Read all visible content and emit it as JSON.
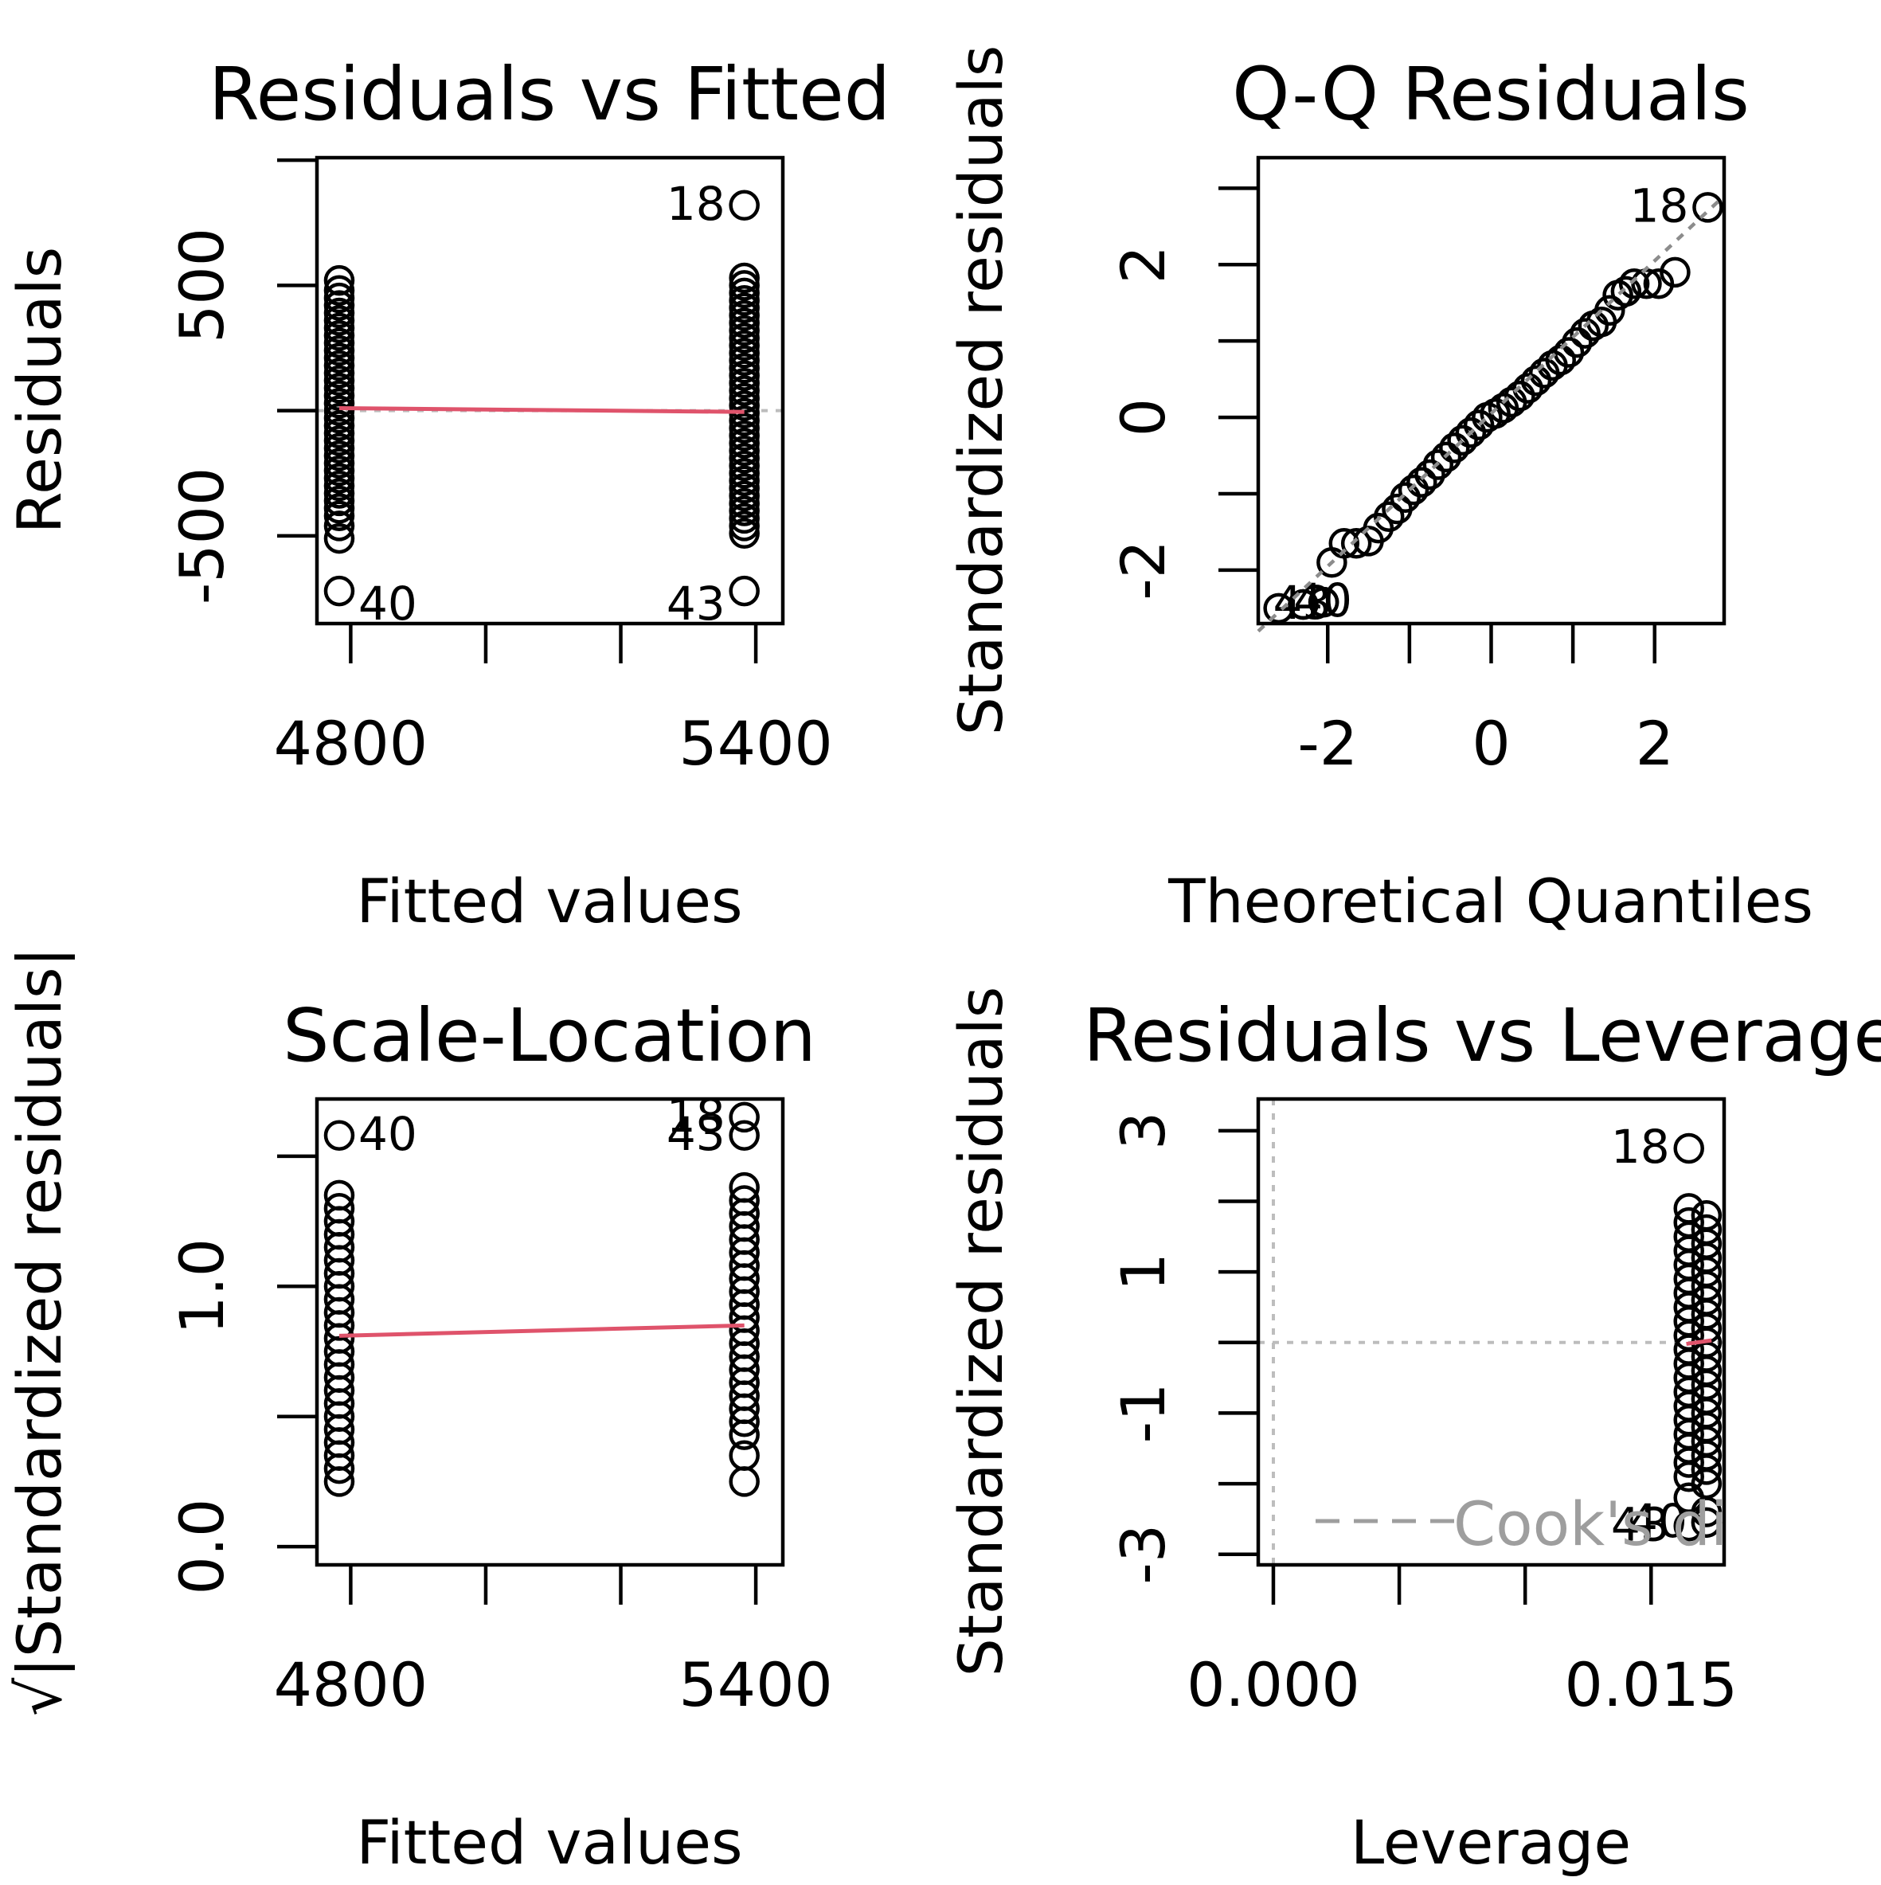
{
  "chart_data": [
    {
      "type": "scatter",
      "title": "Residuals vs Fitted",
      "xlabel": "Fitted values",
      "ylabel": "Residuals",
      "xlim": [
        4750,
        5440
      ],
      "ylim": [
        -850,
        1010
      ],
      "xticks": [
        4800,
        5000,
        5200,
        5400
      ],
      "xtick_labels": [
        "4800",
        "5400"
      ],
      "yticks": [
        -500,
        0,
        500,
        1000
      ],
      "ytick_labels": [
        "-500",
        "500"
      ],
      "reference_line": 0,
      "groups": [
        {
          "x": 4783,
          "y": [
            520,
            480,
            450,
            420,
            390,
            360,
            330,
            300,
            270,
            240,
            210,
            180,
            150,
            120,
            90,
            60,
            30,
            0,
            -30,
            -60,
            -90,
            -120,
            -150,
            -180,
            -210,
            -240,
            -270,
            -300,
            -330,
            -360,
            -390,
            -420,
            -460,
            -510
          ]
        },
        {
          "x": 5383,
          "y": [
            530,
            500,
            470,
            440,
            410,
            380,
            350,
            320,
            290,
            260,
            230,
            200,
            170,
            140,
            110,
            80,
            50,
            20,
            -10,
            -40,
            -70,
            -100,
            -130,
            -160,
            -190,
            -220,
            -250,
            -280,
            -310,
            -340,
            -370,
            -400,
            -430,
            -460,
            -490
          ]
        }
      ],
      "points": [
        {
          "x": 4783,
          "y": -720,
          "label": "40"
        },
        {
          "x": 5383,
          "y": 820,
          "label": "18"
        },
        {
          "x": 5383,
          "y": -720,
          "label": "43"
        }
      ],
      "smooth_line": [
        [
          4783,
          10
        ],
        [
          5383,
          -5
        ]
      ]
    },
    {
      "type": "scatter",
      "title": "Q-Q Residuals",
      "xlabel": "Theoretical Quantiles",
      "ylabel": "Standardized residuals",
      "xlim": [
        -2.85,
        2.85
      ],
      "ylim": [
        -2.7,
        3.4
      ],
      "xticks": [
        -2,
        -1,
        0,
        1,
        2
      ],
      "xtick_labels": [
        "-2",
        "0",
        "2"
      ],
      "yticks": [
        -2,
        -1,
        0,
        1,
        2,
        3
      ],
      "ytick_labels": [
        "-2",
        "0",
        "2"
      ],
      "qq_points": [
        [
          -2.6,
          -2.5
        ],
        [
          -2.3,
          -2.45
        ],
        [
          -2.05,
          -2.42
        ],
        [
          -1.95,
          -1.9
        ],
        [
          -1.8,
          -1.65
        ],
        [
          -1.65,
          -1.65
        ],
        [
          -1.5,
          -1.62
        ],
        [
          -1.38,
          -1.45
        ],
        [
          -1.25,
          -1.3
        ],
        [
          -1.15,
          -1.2
        ],
        [
          -1.05,
          -1.05
        ],
        [
          -0.95,
          -0.95
        ],
        [
          -0.85,
          -0.85
        ],
        [
          -0.75,
          -0.75
        ],
        [
          -0.65,
          -0.62
        ],
        [
          -0.55,
          -0.52
        ],
        [
          -0.45,
          -0.4
        ],
        [
          -0.35,
          -0.3
        ],
        [
          -0.25,
          -0.2
        ],
        [
          -0.15,
          -0.1
        ],
        [
          -0.05,
          0.0
        ],
        [
          0.05,
          0.05
        ],
        [
          0.15,
          0.12
        ],
        [
          0.25,
          0.2
        ],
        [
          0.35,
          0.28
        ],
        [
          0.45,
          0.38
        ],
        [
          0.55,
          0.48
        ],
        [
          0.65,
          0.58
        ],
        [
          0.75,
          0.68
        ],
        [
          0.85,
          0.75
        ],
        [
          0.95,
          0.85
        ],
        [
          1.05,
          0.98
        ],
        [
          1.15,
          1.1
        ],
        [
          1.25,
          1.2
        ],
        [
          1.35,
          1.25
        ],
        [
          1.45,
          1.4
        ],
        [
          1.55,
          1.6
        ],
        [
          1.65,
          1.65
        ],
        [
          1.75,
          1.75
        ],
        [
          1.9,
          1.75
        ],
        [
          2.05,
          1.75
        ],
        [
          2.25,
          1.9
        ]
      ],
      "points": [
        {
          "x": 2.65,
          "y": 2.75,
          "label": "18"
        },
        {
          "x": -2.3,
          "y": -2.45,
          "label": "43"
        },
        {
          "x": -2.05,
          "y": -2.42,
          "label": "40"
        }
      ],
      "reference_line": [
        [
          -2.85,
          -2.8
        ],
        [
          2.85,
          2.9
        ]
      ]
    },
    {
      "type": "scatter",
      "title": "Scale-Location",
      "xlabel": "Fitted values",
      "ylabel": "√|Standardized residuals|",
      "xlim": [
        4750,
        5440
      ],
      "ylim": [
        -0.07,
        1.72
      ],
      "xticks": [
        4800,
        5000,
        5200,
        5400
      ],
      "xtick_labels": [
        "4800",
        "5400"
      ],
      "yticks": [
        0.0,
        0.5,
        1.0,
        1.5
      ],
      "ytick_labels": [
        "0.0",
        "1.0"
      ],
      "groups": [
        {
          "x": 4783,
          "y": [
            1.35,
            1.3,
            1.25,
            1.2,
            1.15,
            1.1,
            1.05,
            1.0,
            0.95,
            0.9,
            0.85,
            0.8,
            0.75,
            0.7,
            0.65,
            0.6,
            0.55,
            0.5,
            0.45,
            0.4,
            0.35,
            0.3,
            0.25
          ]
        },
        {
          "x": 5383,
          "y": [
            1.38,
            1.33,
            1.28,
            1.23,
            1.18,
            1.13,
            1.08,
            1.03,
            0.98,
            0.93,
            0.88,
            0.83,
            0.78,
            0.73,
            0.68,
            0.63,
            0.58,
            0.53,
            0.48,
            0.43,
            0.35,
            0.25
          ]
        }
      ],
      "points": [
        {
          "x": 4783,
          "y": 1.58,
          "label": "40"
        },
        {
          "x": 5383,
          "y": 1.65,
          "label": "18"
        },
        {
          "x": 5383,
          "y": 1.58,
          "label": "43"
        }
      ],
      "smooth_line": [
        [
          4783,
          0.81
        ],
        [
          5383,
          0.85
        ]
      ]
    },
    {
      "type": "scatter",
      "title": "Residuals vs Leverage",
      "xlabel": "Leverage",
      "ylabel": "Standardized residuals",
      "xlim": [
        -0.0006,
        0.0179
      ],
      "ylim": [
        -3.15,
        3.45
      ],
      "xticks": [
        0.0,
        0.005,
        0.01,
        0.015
      ],
      "xtick_labels": [
        "0.000",
        "0.015"
      ],
      "yticks": [
        -3,
        -2,
        -1,
        0,
        1,
        2,
        3
      ],
      "ytick_labels": [
        "-3",
        "-1",
        "1",
        "3"
      ],
      "groups": [
        {
          "x": 0.0165,
          "y": [
            1.9,
            1.7,
            1.5,
            1.3,
            1.1,
            0.9,
            0.7,
            0.5,
            0.3,
            0.1,
            -0.1,
            -0.3,
            -0.5,
            -0.7,
            -0.9,
            -1.1,
            -1.3,
            -1.5,
            -1.7,
            -1.9,
            -2.2
          ]
        },
        {
          "x": 0.0172,
          "y": [
            1.8,
            1.6,
            1.4,
            1.2,
            1.0,
            0.8,
            0.6,
            0.4,
            0.2,
            0.0,
            -0.2,
            -0.4,
            -0.6,
            -0.8,
            -1.0,
            -1.2,
            -1.4,
            -1.6,
            -1.8,
            -2.0,
            -2.4
          ]
        }
      ],
      "points": [
        {
          "x": 0.0165,
          "y": 2.75,
          "label": "18"
        },
        {
          "x": 0.0165,
          "y": -2.6,
          "label": "43"
        },
        {
          "x": 0.0172,
          "y": -2.55,
          "label": "40"
        }
      ],
      "smooth_line": [
        [
          0.0164,
          -0.02
        ],
        [
          0.0174,
          0.03
        ]
      ],
      "legend": {
        "label": "Cook's distance",
        "placement": "bottom-right"
      }
    }
  ]
}
